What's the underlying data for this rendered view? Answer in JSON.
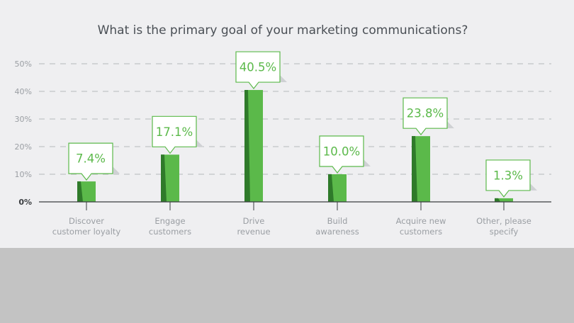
{
  "chart_data": {
    "type": "bar",
    "title": "What is the primary goal of your marketing communications?",
    "categories": [
      [
        "Discover",
        "customer loyalty"
      ],
      [
        "Engage",
        "customers"
      ],
      [
        "Drive",
        "revenue"
      ],
      [
        "Build",
        "awareness"
      ],
      [
        "Acquire new",
        "customers"
      ],
      [
        "Other, please",
        "specify"
      ]
    ],
    "values": [
      7.4,
      17.1,
      40.5,
      10.0,
      23.8,
      1.3
    ],
    "value_labels": [
      "7.4%",
      "17.1%",
      "40.5%",
      "10.0%",
      "23.8%",
      "1.3%"
    ],
    "yticks": [
      0,
      10,
      20,
      30,
      40,
      50
    ],
    "ytick_labels": [
      "0%",
      "10%",
      "20%",
      "30%",
      "40%",
      "50%"
    ],
    "ylim": [
      0,
      50
    ],
    "grid": true,
    "colors": {
      "bar": "#5bb94a",
      "bar_shade": "#2f7a2a",
      "label_border": "#5bb94a",
      "label_text": "#5bb94a",
      "grid": "#b5b8bc",
      "axis": "#3a3d40",
      "panel_bg": "#efeff1",
      "band_bg": "#c3c3c3"
    }
  }
}
